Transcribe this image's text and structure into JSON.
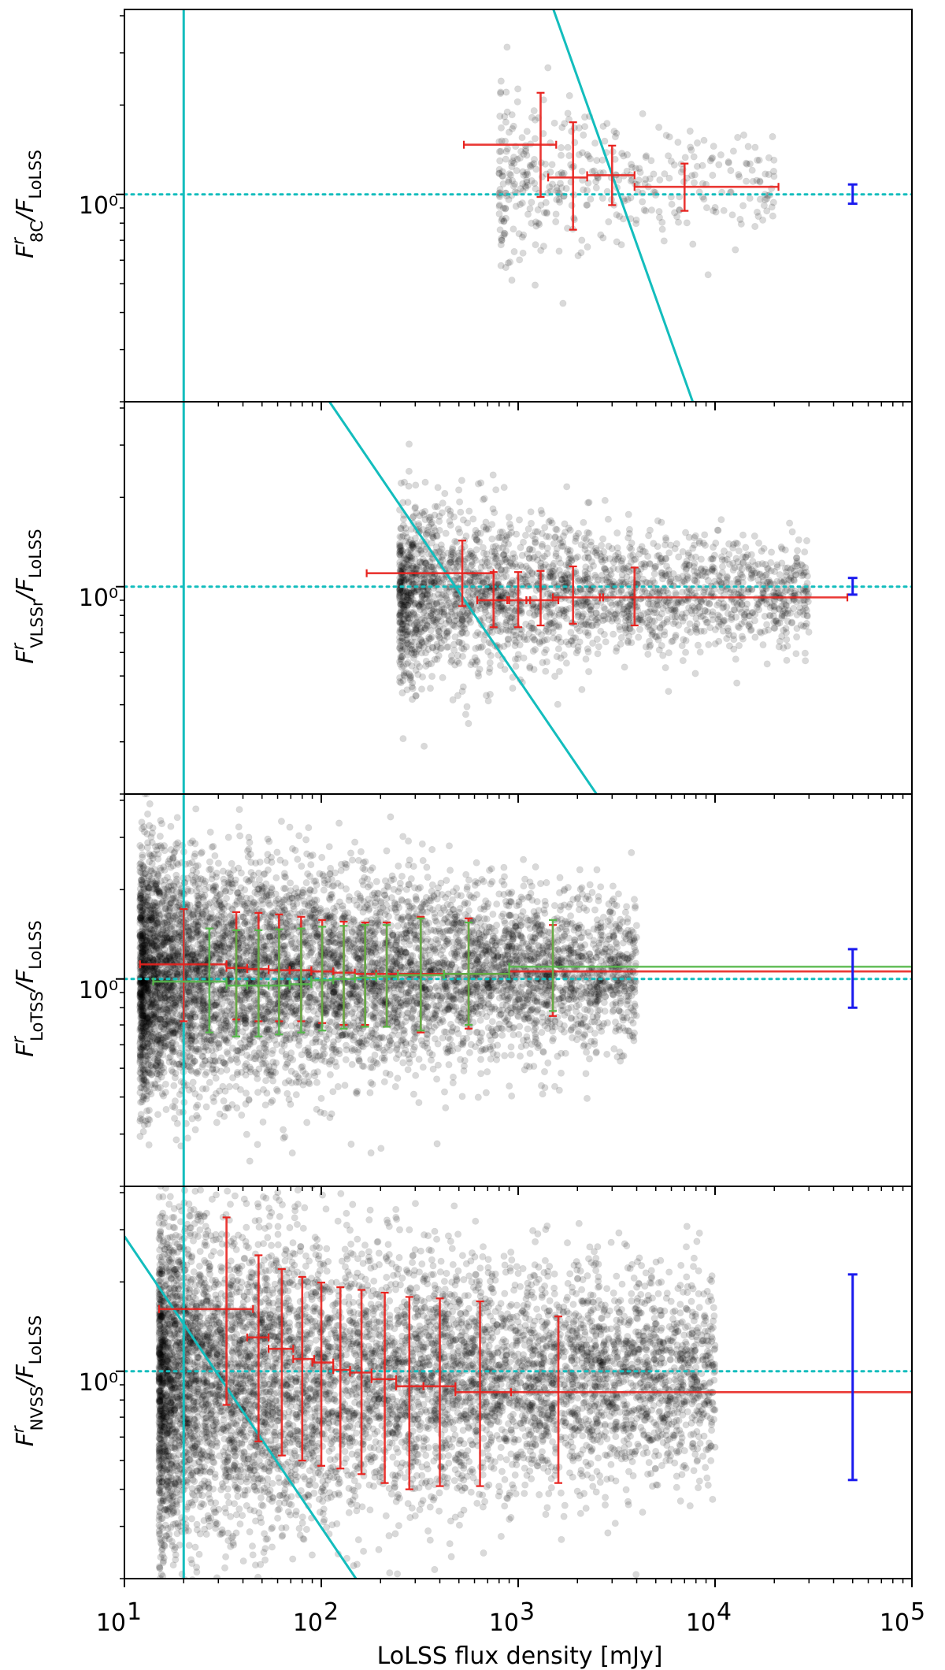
{
  "figure": {
    "xlabel": "LoLSS flux density [mJy]",
    "x_tick_base": "10",
    "x_tick_exponents": [
      "1",
      "2",
      "3",
      "4",
      "5"
    ],
    "y_tick_label": "10⁰",
    "colors": {
      "scatter": "#000000",
      "binned_red": "#e8221e",
      "binned_green": "#55b84a",
      "reference_line": "#13bdbd",
      "typical_error": "#1a1aee"
    }
  },
  "chart_data": [
    {
      "type": "scatter",
      "panel": "8C",
      "ylabel_main": "F",
      "ylabel_sup": "r",
      "ylabel_sub": "8C",
      "ylabel_den": "/F",
      "ylabel_den_sub": "LoLSS",
      "xscale": "log",
      "yscale": "log",
      "xlim": [
        10,
        100000
      ],
      "ylim": [
        0.2,
        4.2
      ],
      "grid": false,
      "flux_limit_mJy": 20,
      "cutoff_line": {
        "x": [
          1510,
          7700
        ],
        "y": [
          4.2,
          0.2
        ]
      },
      "unity_line": 1.0,
      "scatter_points": {
        "count": 420,
        "x_range": [
          800,
          20000
        ],
        "y_center": 1.12,
        "y_sigma_dex": 0.11
      },
      "binned_red": [
        {
          "x": 1300,
          "x_lo": 530,
          "x_hi": 1560,
          "y": 1.47,
          "y_lo": 0.98,
          "y_hi": 2.2
        },
        {
          "x": 1900,
          "x_lo": 1420,
          "x_hi": 2240,
          "y": 1.14,
          "y_lo": 0.76,
          "y_hi": 1.75
        },
        {
          "x": 3000,
          "x_lo": 2240,
          "x_hi": 3900,
          "y": 1.16,
          "y_lo": 0.92,
          "y_hi": 1.46
        },
        {
          "x": 7000,
          "x_lo": 3900,
          "x_hi": 21000,
          "y": 1.06,
          "y_lo": 0.88,
          "y_hi": 1.27
        }
      ],
      "typical_error": {
        "x": 50000,
        "y": 1.0,
        "y_lo": 0.93,
        "y_hi": 1.08
      }
    },
    {
      "type": "scatter",
      "panel": "VLSSr",
      "ylabel_main": "F",
      "ylabel_sup": "r",
      "ylabel_sub": "VLSSr",
      "ylabel_den": "/F",
      "ylabel_den_sub": "LoLSS",
      "xscale": "log",
      "yscale": "log",
      "xlim": [
        10,
        100000
      ],
      "ylim": [
        0.2,
        4.2
      ],
      "grid": false,
      "flux_limit_mJy": 20,
      "cutoff_line": {
        "x": [
          110,
          2500
        ],
        "y": [
          4.2,
          0.2
        ]
      },
      "unity_line": 1.0,
      "scatter_points": {
        "count": 2600,
        "x_range": [
          250,
          30000
        ],
        "y_center": 0.95,
        "y_sigma_dex": 0.12
      },
      "binned_red": [
        {
          "x": 520,
          "x_lo": 170,
          "x_hi": 750,
          "y": 1.11,
          "y_lo": 0.86,
          "y_hi": 1.43
        },
        {
          "x": 750,
          "x_lo": 620,
          "x_hi": 900,
          "y": 0.9,
          "y_lo": 0.73,
          "y_hi": 1.12
        },
        {
          "x": 1000,
          "x_lo": 880,
          "x_hi": 1150,
          "y": 0.9,
          "y_lo": 0.73,
          "y_hi": 1.12
        },
        {
          "x": 1300,
          "x_lo": 1100,
          "x_hi": 1600,
          "y": 0.9,
          "y_lo": 0.74,
          "y_hi": 1.13
        },
        {
          "x": 1900,
          "x_lo": 1500,
          "x_hi": 2700,
          "y": 0.92,
          "y_lo": 0.75,
          "y_hi": 1.17
        },
        {
          "x": 3900,
          "x_lo": 2600,
          "x_hi": 47000,
          "y": 0.92,
          "y_lo": 0.74,
          "y_hi": 1.16
        }
      ],
      "typical_error": {
        "x": 50000,
        "y": 1.0,
        "y_lo": 0.94,
        "y_hi": 1.07
      }
    },
    {
      "type": "scatter",
      "panel": "LoTSS",
      "ylabel_main": "F",
      "ylabel_sup": "r",
      "ylabel_sub": "LoTSS",
      "ylabel_den": "/F",
      "ylabel_den_sub": "LoLSS",
      "xscale": "log",
      "yscale": "log",
      "xlim": [
        10,
        100000
      ],
      "ylim": [
        0.2,
        4.2
      ],
      "grid": false,
      "flux_limit_mJy": 20,
      "unity_line": 1.0,
      "scatter_points": {
        "count": 7000,
        "x_range": [
          12,
          4000
        ],
        "y_center": 1.05,
        "y_sigma_dex": 0.17
      },
      "binned_red": [
        {
          "x": 20,
          "x_lo": 12,
          "x_hi": 33,
          "y": 1.12,
          "y_lo": 0.72,
          "y_hi": 1.72
        },
        {
          "x": 37,
          "x_lo": 33,
          "x_hi": 42,
          "y": 1.09,
          "y_lo": 0.73,
          "y_hi": 1.68
        },
        {
          "x": 48,
          "x_lo": 42,
          "x_hi": 54,
          "y": 1.08,
          "y_lo": 0.72,
          "y_hi": 1.67
        },
        {
          "x": 61,
          "x_lo": 54,
          "x_hi": 69,
          "y": 1.07,
          "y_lo": 0.72,
          "y_hi": 1.65
        },
        {
          "x": 79,
          "x_lo": 69,
          "x_hi": 89,
          "y": 1.07,
          "y_lo": 0.72,
          "y_hi": 1.62
        },
        {
          "x": 101,
          "x_lo": 89,
          "x_hi": 115,
          "y": 1.06,
          "y_lo": 0.71,
          "y_hi": 1.58
        },
        {
          "x": 130,
          "x_lo": 115,
          "x_hi": 148,
          "y": 1.05,
          "y_lo": 0.7,
          "y_hi": 1.56
        },
        {
          "x": 167,
          "x_lo": 148,
          "x_hi": 190,
          "y": 1.04,
          "y_lo": 0.7,
          "y_hi": 1.55
        },
        {
          "x": 215,
          "x_lo": 190,
          "x_hi": 245,
          "y": 1.04,
          "y_lo": 0.69,
          "y_hi": 1.55
        },
        {
          "x": 320,
          "x_lo": 245,
          "x_hi": 420,
          "y": 1.04,
          "y_lo": 0.66,
          "y_hi": 1.62
        },
        {
          "x": 560,
          "x_lo": 420,
          "x_hi": 900,
          "y": 1.04,
          "y_lo": 0.68,
          "y_hi": 1.6
        },
        {
          "x": 1500,
          "x_lo": 900,
          "x_hi": 100000,
          "y": 1.06,
          "y_lo": 0.75,
          "y_hi": 1.52
        }
      ],
      "binned_green": [
        {
          "x": 27,
          "x_lo": 14,
          "x_hi": 33,
          "y": 0.98,
          "y_lo": 0.66,
          "y_hi": 1.48
        },
        {
          "x": 37,
          "x_lo": 33,
          "x_hi": 42,
          "y": 0.95,
          "y_lo": 0.64,
          "y_hi": 1.46
        },
        {
          "x": 48,
          "x_lo": 42,
          "x_hi": 54,
          "y": 0.95,
          "y_lo": 0.64,
          "y_hi": 1.46
        },
        {
          "x": 61,
          "x_lo": 54,
          "x_hi": 69,
          "y": 0.95,
          "y_lo": 0.65,
          "y_hi": 1.47
        },
        {
          "x": 79,
          "x_lo": 69,
          "x_hi": 89,
          "y": 0.96,
          "y_lo": 0.66,
          "y_hi": 1.48
        },
        {
          "x": 101,
          "x_lo": 89,
          "x_hi": 115,
          "y": 0.99,
          "y_lo": 0.67,
          "y_hi": 1.5
        },
        {
          "x": 130,
          "x_lo": 115,
          "x_hi": 148,
          "y": 1.0,
          "y_lo": 0.68,
          "y_hi": 1.51
        },
        {
          "x": 167,
          "x_lo": 148,
          "x_hi": 190,
          "y": 1.01,
          "y_lo": 0.69,
          "y_hi": 1.52
        },
        {
          "x": 215,
          "x_lo": 190,
          "x_hi": 245,
          "y": 1.02,
          "y_lo": 0.69,
          "y_hi": 1.52
        },
        {
          "x": 320,
          "x_lo": 245,
          "x_hi": 420,
          "y": 1.03,
          "y_lo": 0.67,
          "y_hi": 1.6
        },
        {
          "x": 560,
          "x_lo": 420,
          "x_hi": 900,
          "y": 1.04,
          "y_lo": 0.7,
          "y_hi": 1.55
        },
        {
          "x": 1500,
          "x_lo": 900,
          "x_hi": 100000,
          "y": 1.1,
          "y_lo": 0.78,
          "y_hi": 1.58
        }
      ],
      "typical_error": {
        "x": 50000,
        "y": 1.0,
        "y_lo": 0.8,
        "y_hi": 1.26
      }
    },
    {
      "type": "scatter",
      "panel": "NVSS",
      "ylabel_main": "F",
      "ylabel_sup": "r",
      "ylabel_sub": "NVSS",
      "ylabel_den": "/F",
      "ylabel_den_sub": "LoLSS",
      "xscale": "log",
      "yscale": "log",
      "xlim": [
        10,
        100000
      ],
      "ylim": [
        0.2,
        4.2
      ],
      "grid": false,
      "flux_limit_mJy": 20,
      "cutoff_line": {
        "x": [
          10,
          150
        ],
        "y": [
          2.85,
          0.2
        ]
      },
      "unity_line": 1.0,
      "scatter_points": {
        "count": 7500,
        "x_range": [
          15,
          10000
        ],
        "y_center": 0.95,
        "y_sigma_dex": 0.22
      },
      "binned_red": [
        {
          "x": 33,
          "x_lo": 15,
          "x_hi": 45,
          "y": 1.62,
          "y_lo": 0.77,
          "y_hi": 3.3
        },
        {
          "x": 48,
          "x_lo": 42,
          "x_hi": 54,
          "y": 1.3,
          "y_lo": 0.58,
          "y_hi": 2.46
        },
        {
          "x": 63,
          "x_lo": 54,
          "x_hi": 72,
          "y": 1.19,
          "y_lo": 0.52,
          "y_hi": 2.21
        },
        {
          "x": 80,
          "x_lo": 72,
          "x_hi": 92,
          "y": 1.1,
          "y_lo": 0.5,
          "y_hi": 2.08
        },
        {
          "x": 100,
          "x_lo": 90,
          "x_hi": 115,
          "y": 1.07,
          "y_lo": 0.48,
          "y_hi": 1.99
        },
        {
          "x": 125,
          "x_lo": 115,
          "x_hi": 140,
          "y": 1.01,
          "y_lo": 0.47,
          "y_hi": 1.92
        },
        {
          "x": 160,
          "x_lo": 140,
          "x_hi": 180,
          "y": 0.99,
          "y_lo": 0.45,
          "y_hi": 1.88
        },
        {
          "x": 210,
          "x_lo": 180,
          "x_hi": 240,
          "y": 0.94,
          "y_lo": 0.42,
          "y_hi": 1.84
        },
        {
          "x": 280,
          "x_lo": 240,
          "x_hi": 330,
          "y": 0.89,
          "y_lo": 0.4,
          "y_hi": 1.78
        },
        {
          "x": 400,
          "x_lo": 330,
          "x_hi": 480,
          "y": 0.89,
          "y_lo": 0.41,
          "y_hi": 1.76
        },
        {
          "x": 640,
          "x_lo": 480,
          "x_hi": 920,
          "y": 0.85,
          "y_lo": 0.41,
          "y_hi": 1.72
        },
        {
          "x": 1600,
          "x_lo": 920,
          "x_hi": 100000,
          "y": 0.85,
          "y_lo": 0.42,
          "y_hi": 1.53
        }
      ],
      "typical_error": {
        "x": 50000,
        "y": 1.0,
        "y_lo": 0.43,
        "y_hi": 2.12
      }
    }
  ]
}
